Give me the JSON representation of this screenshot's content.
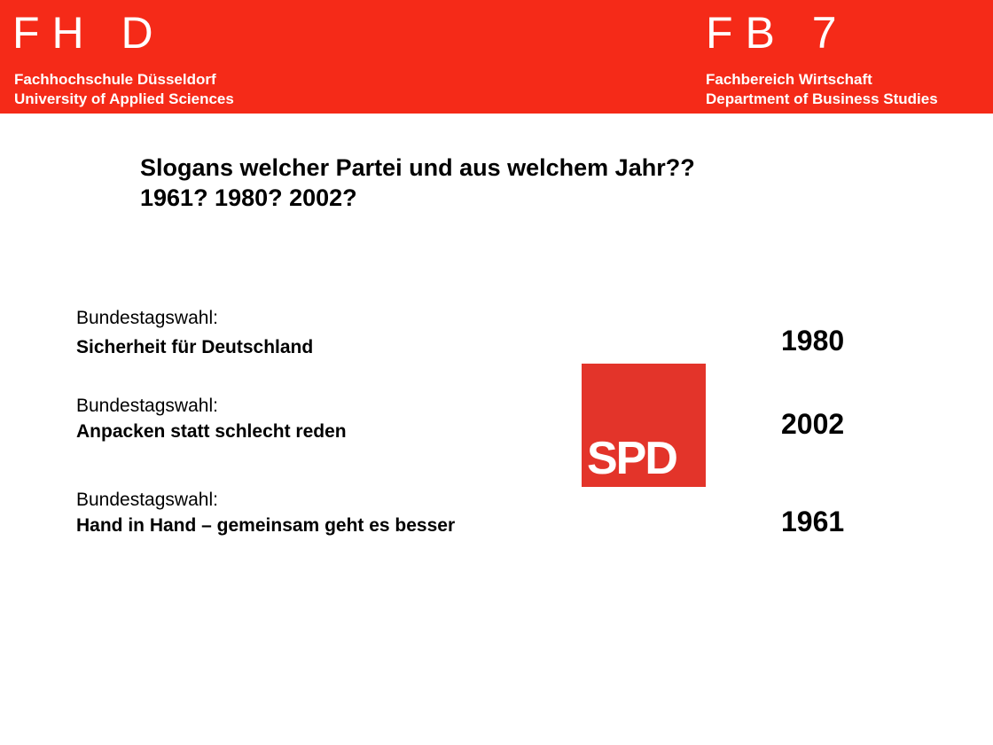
{
  "header": {
    "left_logo": "FH D",
    "left_line1": "Fachhochschule Düsseldorf",
    "left_line2": "University of Applied Sciences",
    "right_logo": "FB 7",
    "right_line1": "Fachbereich Wirtschaft",
    "right_line2": "Department of Business Studies",
    "background_color": "#f52a18"
  },
  "title": {
    "line1": "Slogans welcher Partei und aus welchem Jahr??",
    "line2": "1961? 1980? 2002?"
  },
  "entries": [
    {
      "label": "Bundestagswahl:",
      "slogan": "Sicherheit für Deutschland"
    },
    {
      "label": "Bundestagswahl:",
      "slogan": "Anpacken statt schlecht reden"
    },
    {
      "label": "Bundestagswahl:",
      "slogan": "Hand in Hand – gemeinsam geht es besser"
    }
  ],
  "years": [
    "1980",
    "2002",
    "1961"
  ],
  "party_logo": {
    "text": "SPD",
    "color": "#e3342a"
  }
}
